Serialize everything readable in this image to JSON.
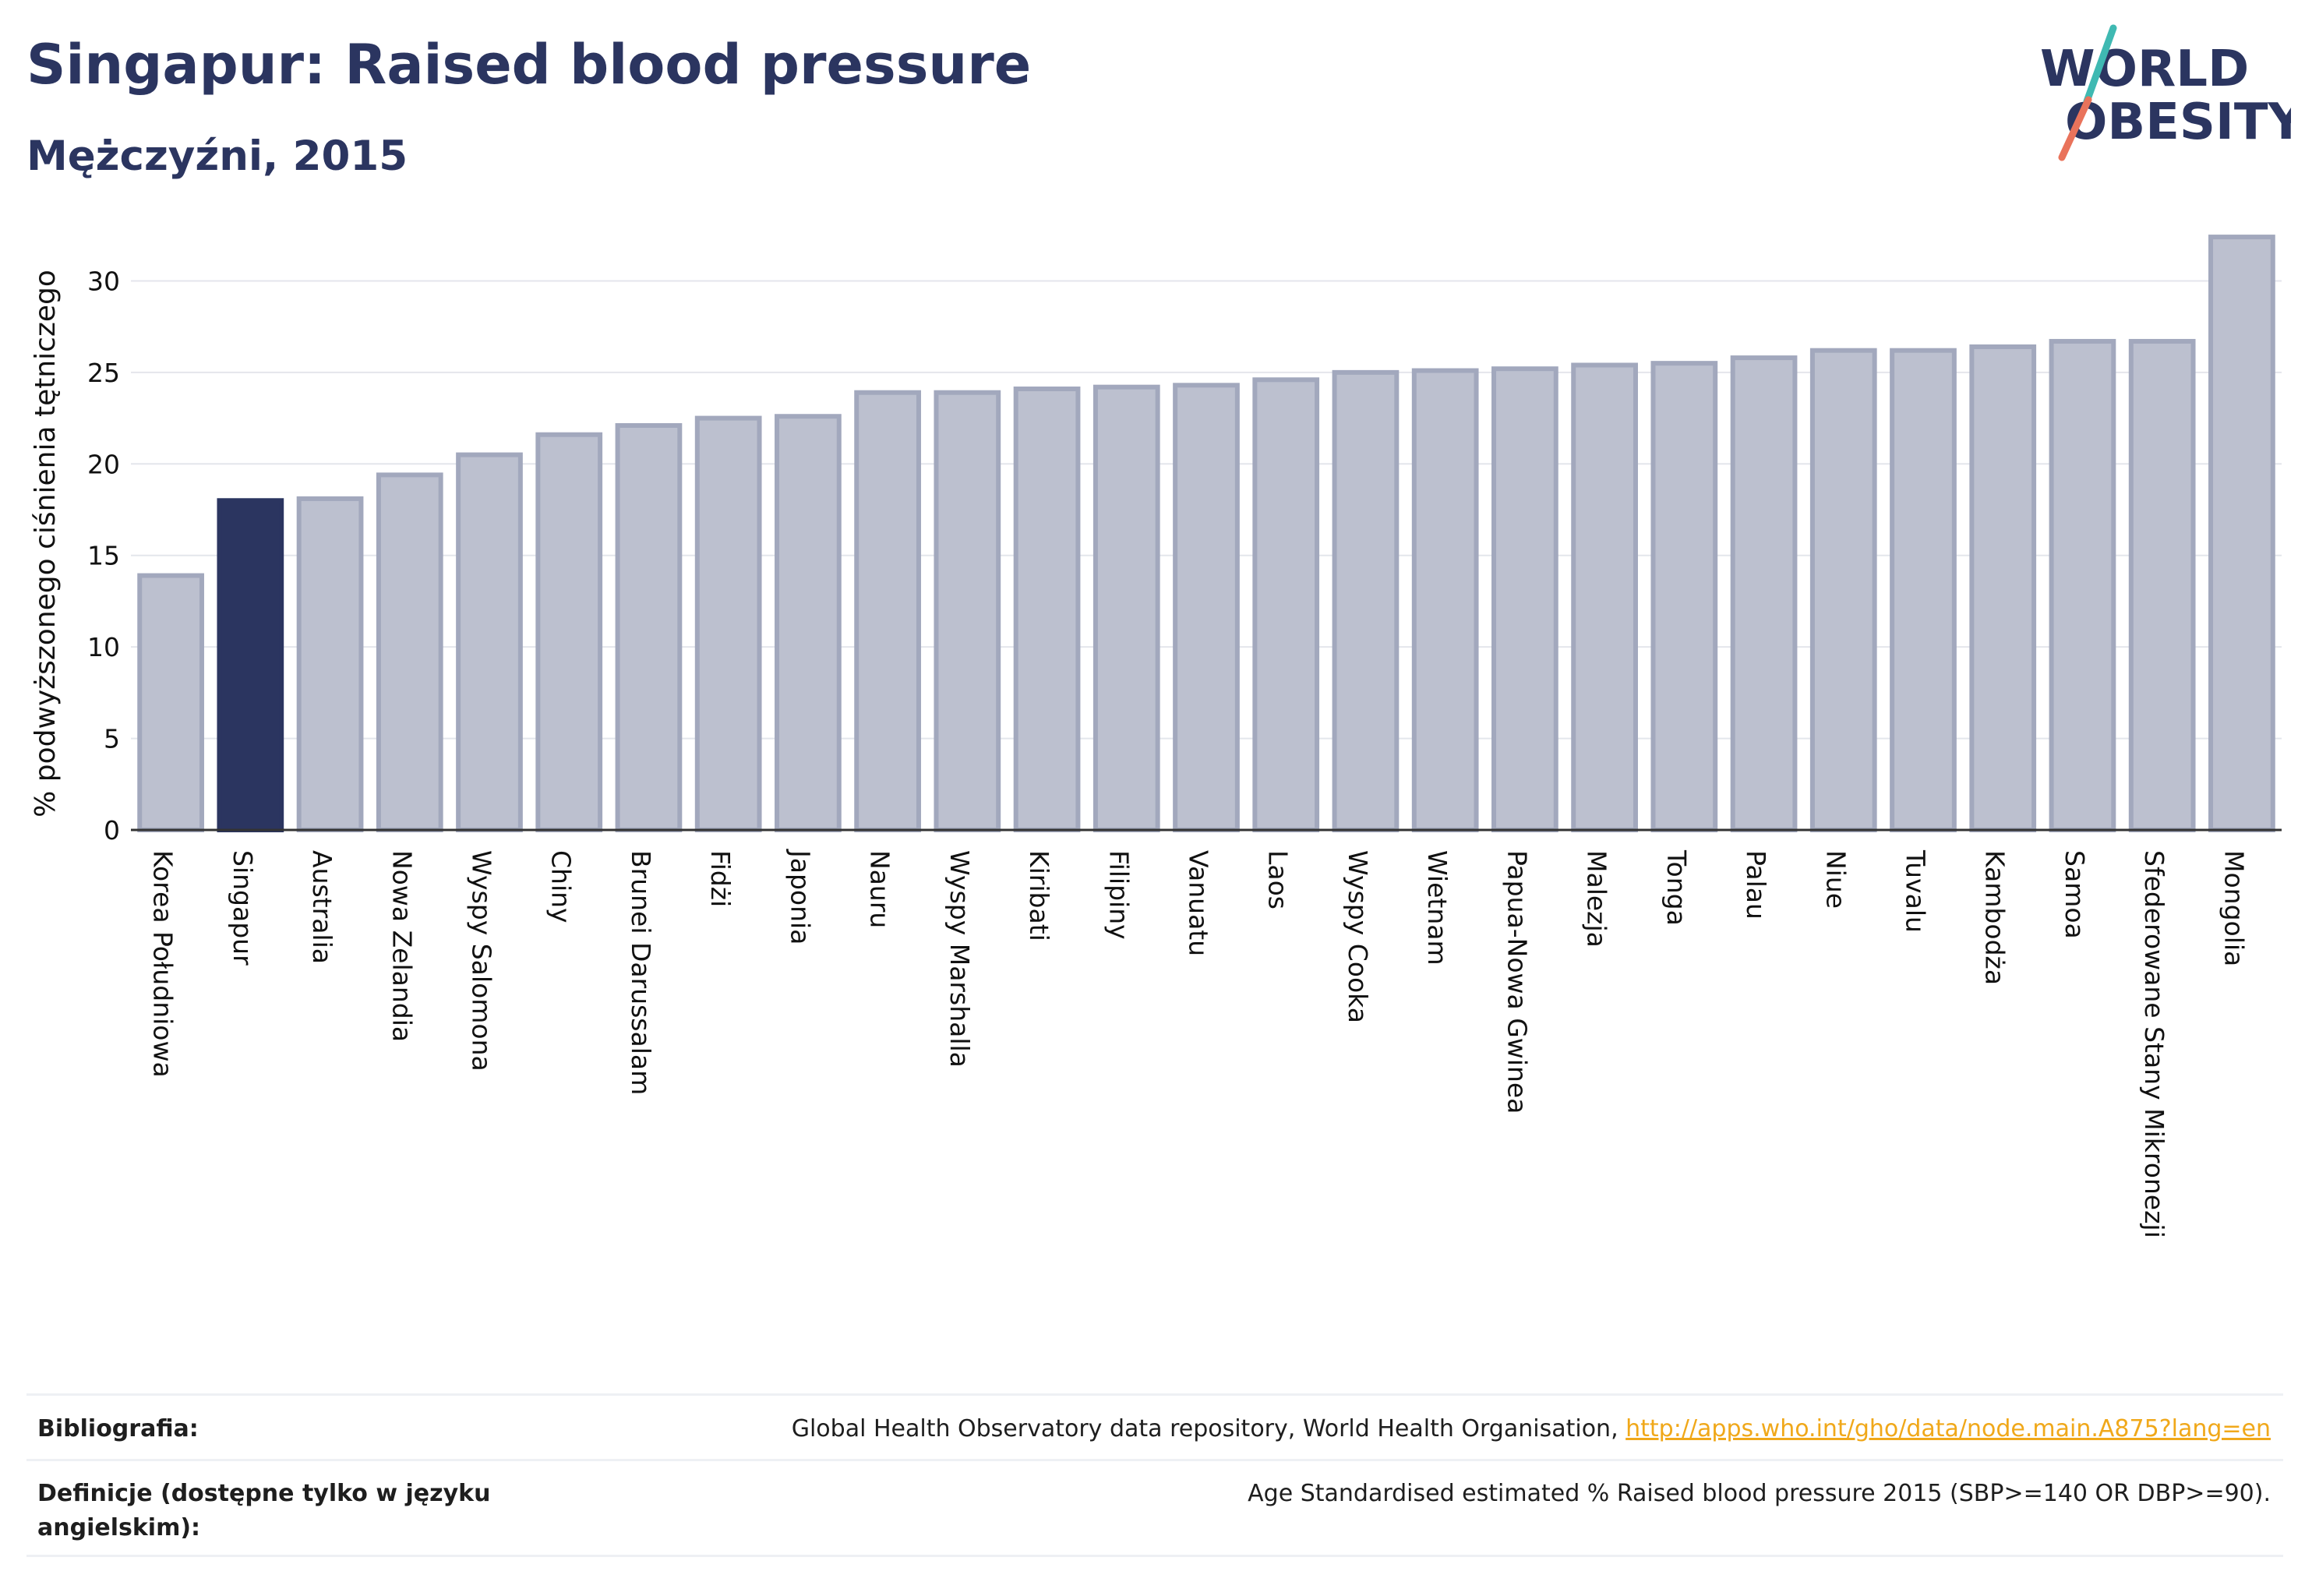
{
  "header": {
    "title": "Singapur: Raised blood pressure",
    "subtitle": "Mężczyźni, 2015"
  },
  "logo": {
    "line1": "WORLD",
    "line2": "OBESITY",
    "colors": {
      "text": "#2b3560",
      "slash_teal": "#3fb9b2",
      "slash_coral": "#e9735b"
    }
  },
  "chart_data": {
    "type": "bar",
    "ylabel": "% podwyższonego ciśnienia tętniczego",
    "xlabel": "",
    "ylim": [
      0,
      33
    ],
    "yticks": [
      0,
      5,
      10,
      15,
      20,
      25,
      30
    ],
    "grid": true,
    "highlight": "Singapur",
    "colors": {
      "bar": "#bcc0cf",
      "bar_edge": "#a2a8bd",
      "highlight": "#2b3560",
      "grid": "#e4e6ec",
      "axis": "#333333"
    },
    "categories": [
      "Korea Południowa",
      "Singapur",
      "Australia",
      "Nowa Zelandia",
      "Wyspy Salomona",
      "Chiny",
      "Brunei Darussalam",
      "Fidżi",
      "Japonia",
      "Nauru",
      "Wyspy Marshalla",
      "Kiribati",
      "Filipiny",
      "Vanuatu",
      "Laos",
      "Wyspy Cooka",
      "Wietnam",
      "Papua-Nowa Gwinea",
      "Malezja",
      "Tonga",
      "Palau",
      "Niue",
      "Tuvalu",
      "Kambodża",
      "Samoa",
      "Sfederowane Stany Mikronezji",
      "Mongolia"
    ],
    "values": [
      13.9,
      18.0,
      18.1,
      19.4,
      20.5,
      21.6,
      22.1,
      22.5,
      22.6,
      23.9,
      23.9,
      24.1,
      24.2,
      24.3,
      24.6,
      25.0,
      25.1,
      25.2,
      25.4,
      25.5,
      25.8,
      26.2,
      26.2,
      26.4,
      26.7,
      26.7,
      32.4
    ]
  },
  "footer": {
    "bibliography_label": "Bibliografia:",
    "bibliography_text": "Global Health Observatory data repository, World Health Organisation, ",
    "bibliography_link": "http://apps.who.int/gho/data/node.main.A875?lang=en",
    "definitions_label": "Definicje (dostępne tylko w języku angielskim):",
    "definitions_text": "Age Standardised estimated % Raised blood pressure 2015 (SBP>=140 OR DBP>=90)."
  }
}
